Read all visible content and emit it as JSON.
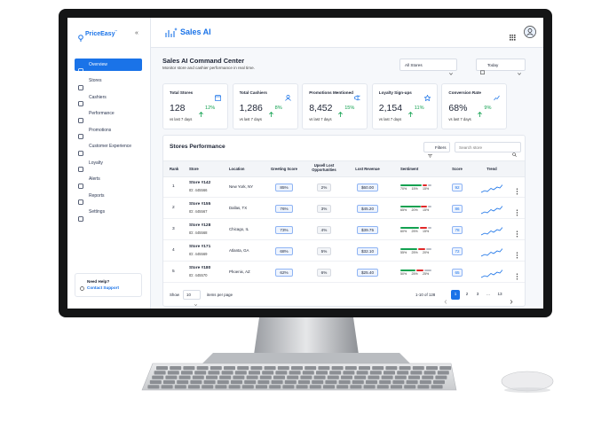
{
  "sidebar": {
    "brand": "PriceEasy",
    "brand_mark": "™",
    "collapse": "«",
    "nav": [
      {
        "label": "Overview",
        "active": true
      },
      {
        "label": "Stores"
      },
      {
        "label": "Cashiers"
      },
      {
        "label": "Performance"
      },
      {
        "label": "Promotions"
      },
      {
        "label": "Customer Experience"
      },
      {
        "label": "Loyalty"
      },
      {
        "label": "Alerts"
      },
      {
        "label": "Reports"
      },
      {
        "label": "Settings"
      }
    ],
    "help": {
      "title": "Need Help?",
      "link": "Contact Support"
    }
  },
  "header": {
    "title": "Sales AI"
  },
  "page": {
    "title": "Sales AI Command Center",
    "subtitle": "Monitor store and cashier performance in real time.",
    "filters": [
      "All Stores",
      "Today"
    ]
  },
  "kpis": [
    {
      "label": "Total Stores",
      "value": "128",
      "change": "12%",
      "note": "vs last 7 days"
    },
    {
      "label": "Total Cashiers",
      "value": "1,286",
      "change": "8%",
      "note": "vs last 7 days"
    },
    {
      "label": "Promotions Mentioned",
      "value": "8,452",
      "change": "15%",
      "note": "vs last 7 days"
    },
    {
      "label": "Loyalty Sign-ups",
      "value": "2,154",
      "change": "11%",
      "note": "vs last 7 days"
    },
    {
      "label": "Conversion Rate",
      "value": "68%",
      "change": "9%",
      "note": "vs last 7 days"
    }
  ],
  "table": {
    "title": "Stores Performance",
    "filter_button": "Filters",
    "search_placeholder": "Search store",
    "columns": [
      "Rank",
      "Store",
      "Location",
      "Greeting Score",
      "Upsell Lost Opportunities",
      "Lost Revenue",
      "Sentiment",
      "Score",
      "Trend"
    ],
    "rows": [
      {
        "rank": 1,
        "store": "Store #142",
        "id": "ID: 445566",
        "location": "New York, NY",
        "greeting": "85%",
        "upsell": "2%",
        "lost_revenue": "$60.00",
        "sentiment": [
          "70%",
          "15%",
          "15%"
        ],
        "score": "92"
      },
      {
        "rank": 2,
        "store": "Store #155",
        "id": "ID: 445567",
        "location": "Dallas, TX",
        "greeting": "76%",
        "upsell": "3%",
        "lost_revenue": "$45.20",
        "sentiment": [
          "65%",
          "20%",
          "15%"
        ],
        "score": "86"
      },
      {
        "rank": 3,
        "store": "Store #128",
        "id": "ID: 445568",
        "location": "Chicago, IL",
        "greeting": "73%",
        "upsell": "4%",
        "lost_revenue": "$39.75",
        "sentiment": [
          "60%",
          "25%",
          "15%"
        ],
        "score": "78"
      },
      {
        "rank": 4,
        "store": "Store #171",
        "id": "ID: 445569",
        "location": "Atlanta, GA",
        "greeting": "68%",
        "upsell": "5%",
        "lost_revenue": "$32.10",
        "sentiment": [
          "55%",
          "25%",
          "20%"
        ],
        "score": "72"
      },
      {
        "rank": 5,
        "store": "Store #180",
        "id": "ID: 445570",
        "location": "Phoenix, AZ",
        "greeting": "62%",
        "upsell": "6%",
        "lost_revenue": "$25.40",
        "sentiment": [
          "50%",
          "25%",
          "25%"
        ],
        "score": "65"
      }
    ]
  },
  "pagination": {
    "show": "Show",
    "per_page": "10",
    "per_page_label": "items per page",
    "range": "1-10 of 128",
    "pages": [
      "1",
      "2",
      "3",
      "...",
      "13"
    ]
  }
}
